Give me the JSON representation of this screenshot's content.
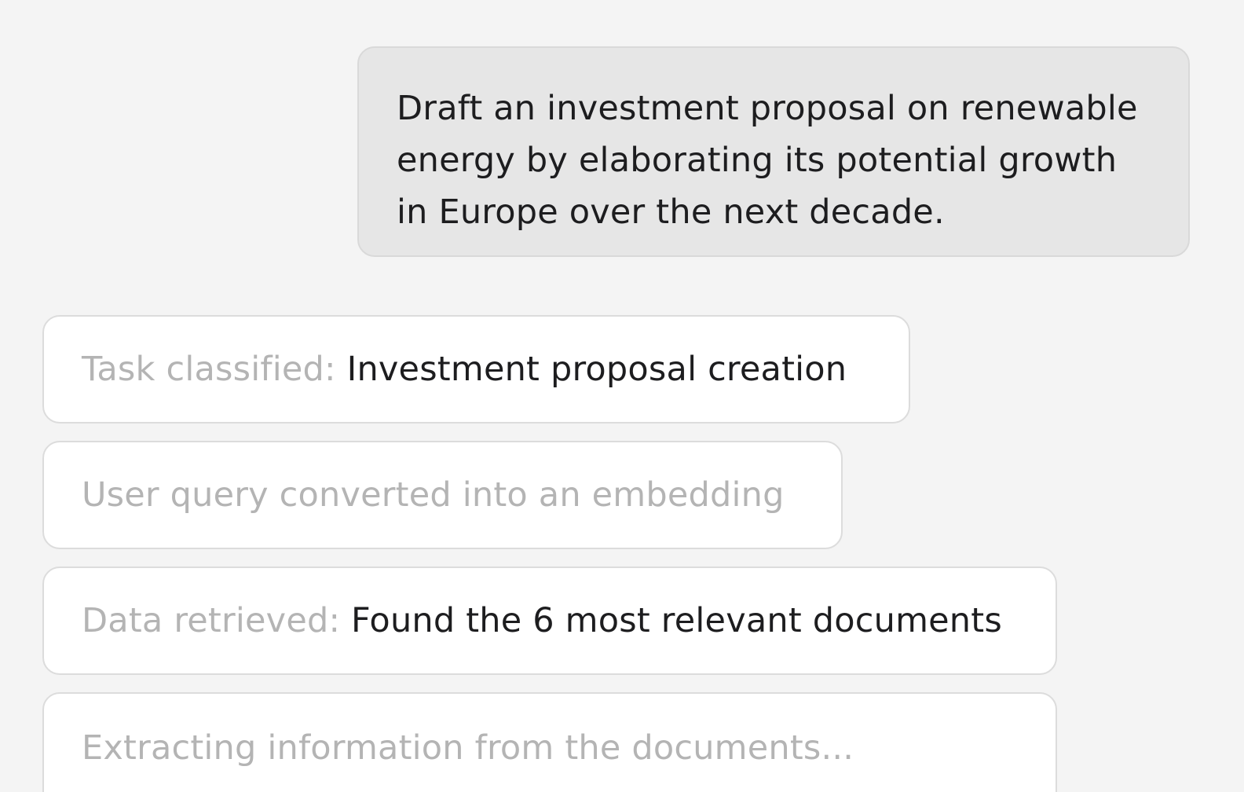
{
  "user_message": {
    "text": "Draft an investment proposal on renewable energy by elaborating its potential growth in Europe over the next decade."
  },
  "steps": [
    {
      "label": "Task classified:",
      "value": "Investment proposal creation"
    },
    {
      "label": "User query converted into an embedding",
      "value": ""
    },
    {
      "label": "Data retrieved:",
      "value": "Found the 6 most relevant documents"
    },
    {
      "label": "Extracting information from the documents...",
      "value": ""
    }
  ]
}
